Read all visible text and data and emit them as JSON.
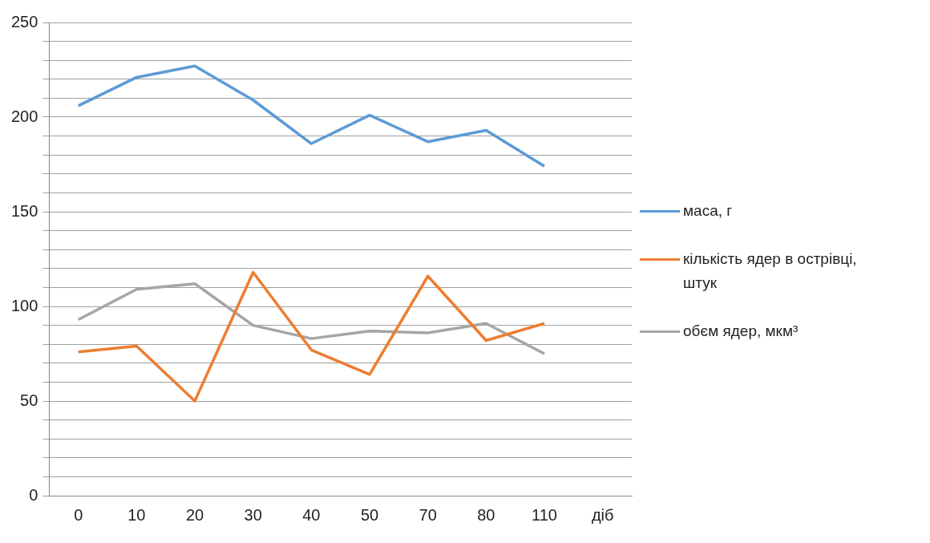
{
  "chart_data": {
    "type": "line",
    "categories": [
      "0",
      "10",
      "20",
      "30",
      "40",
      "50",
      "70",
      "80",
      "110",
      "діб"
    ],
    "series": [
      {
        "name": "маса, г",
        "color": "#5b9bd5",
        "values": [
          206,
          221,
          227,
          209,
          186,
          201,
          187,
          193,
          174,
          null
        ]
      },
      {
        "name": "кількість ядер в острівці, штук",
        "color": "#ed7d31",
        "values": [
          76,
          79,
          50,
          118,
          77,
          64,
          116,
          82,
          91,
          null
        ]
      },
      {
        "name": "обєм ядер, мкм³",
        "color": "#a5a5a5",
        "values": [
          93,
          109,
          112,
          90,
          83,
          87,
          86,
          91,
          75,
          null
        ]
      }
    ],
    "ylim": [
      0,
      250
    ],
    "yticks": [
      0,
      {
        "value": 10,
        "label": null
      },
      {
        "value": 20,
        "label": null
      },
      {
        "value": 30,
        "label": null
      },
      {
        "value": 40,
        "label": null
      },
      50,
      {
        "value": 60,
        "label": null
      },
      {
        "value": 70,
        "label": null
      },
      {
        "value": 80,
        "label": null
      },
      {
        "value": 90,
        "label": null
      },
      100,
      {
        "value": 110,
        "label": null
      },
      {
        "value": 120,
        "label": null
      },
      {
        "value": 130,
        "label": null
      },
      {
        "value": 140,
        "label": null
      },
      150,
      {
        "value": 160,
        "label": null
      },
      {
        "value": 170,
        "label": null
      },
      {
        "value": 180,
        "label": null
      },
      {
        "value": 190,
        "label": null
      },
      200,
      {
        "value": 210,
        "label": null
      },
      {
        "value": 220,
        "label": null
      },
      {
        "value": 230,
        "label": null
      },
      {
        "value": 240,
        "label": null
      },
      250
    ],
    "grid": "y",
    "legend": "right",
    "marker": "none",
    "line_style": "solid"
  }
}
